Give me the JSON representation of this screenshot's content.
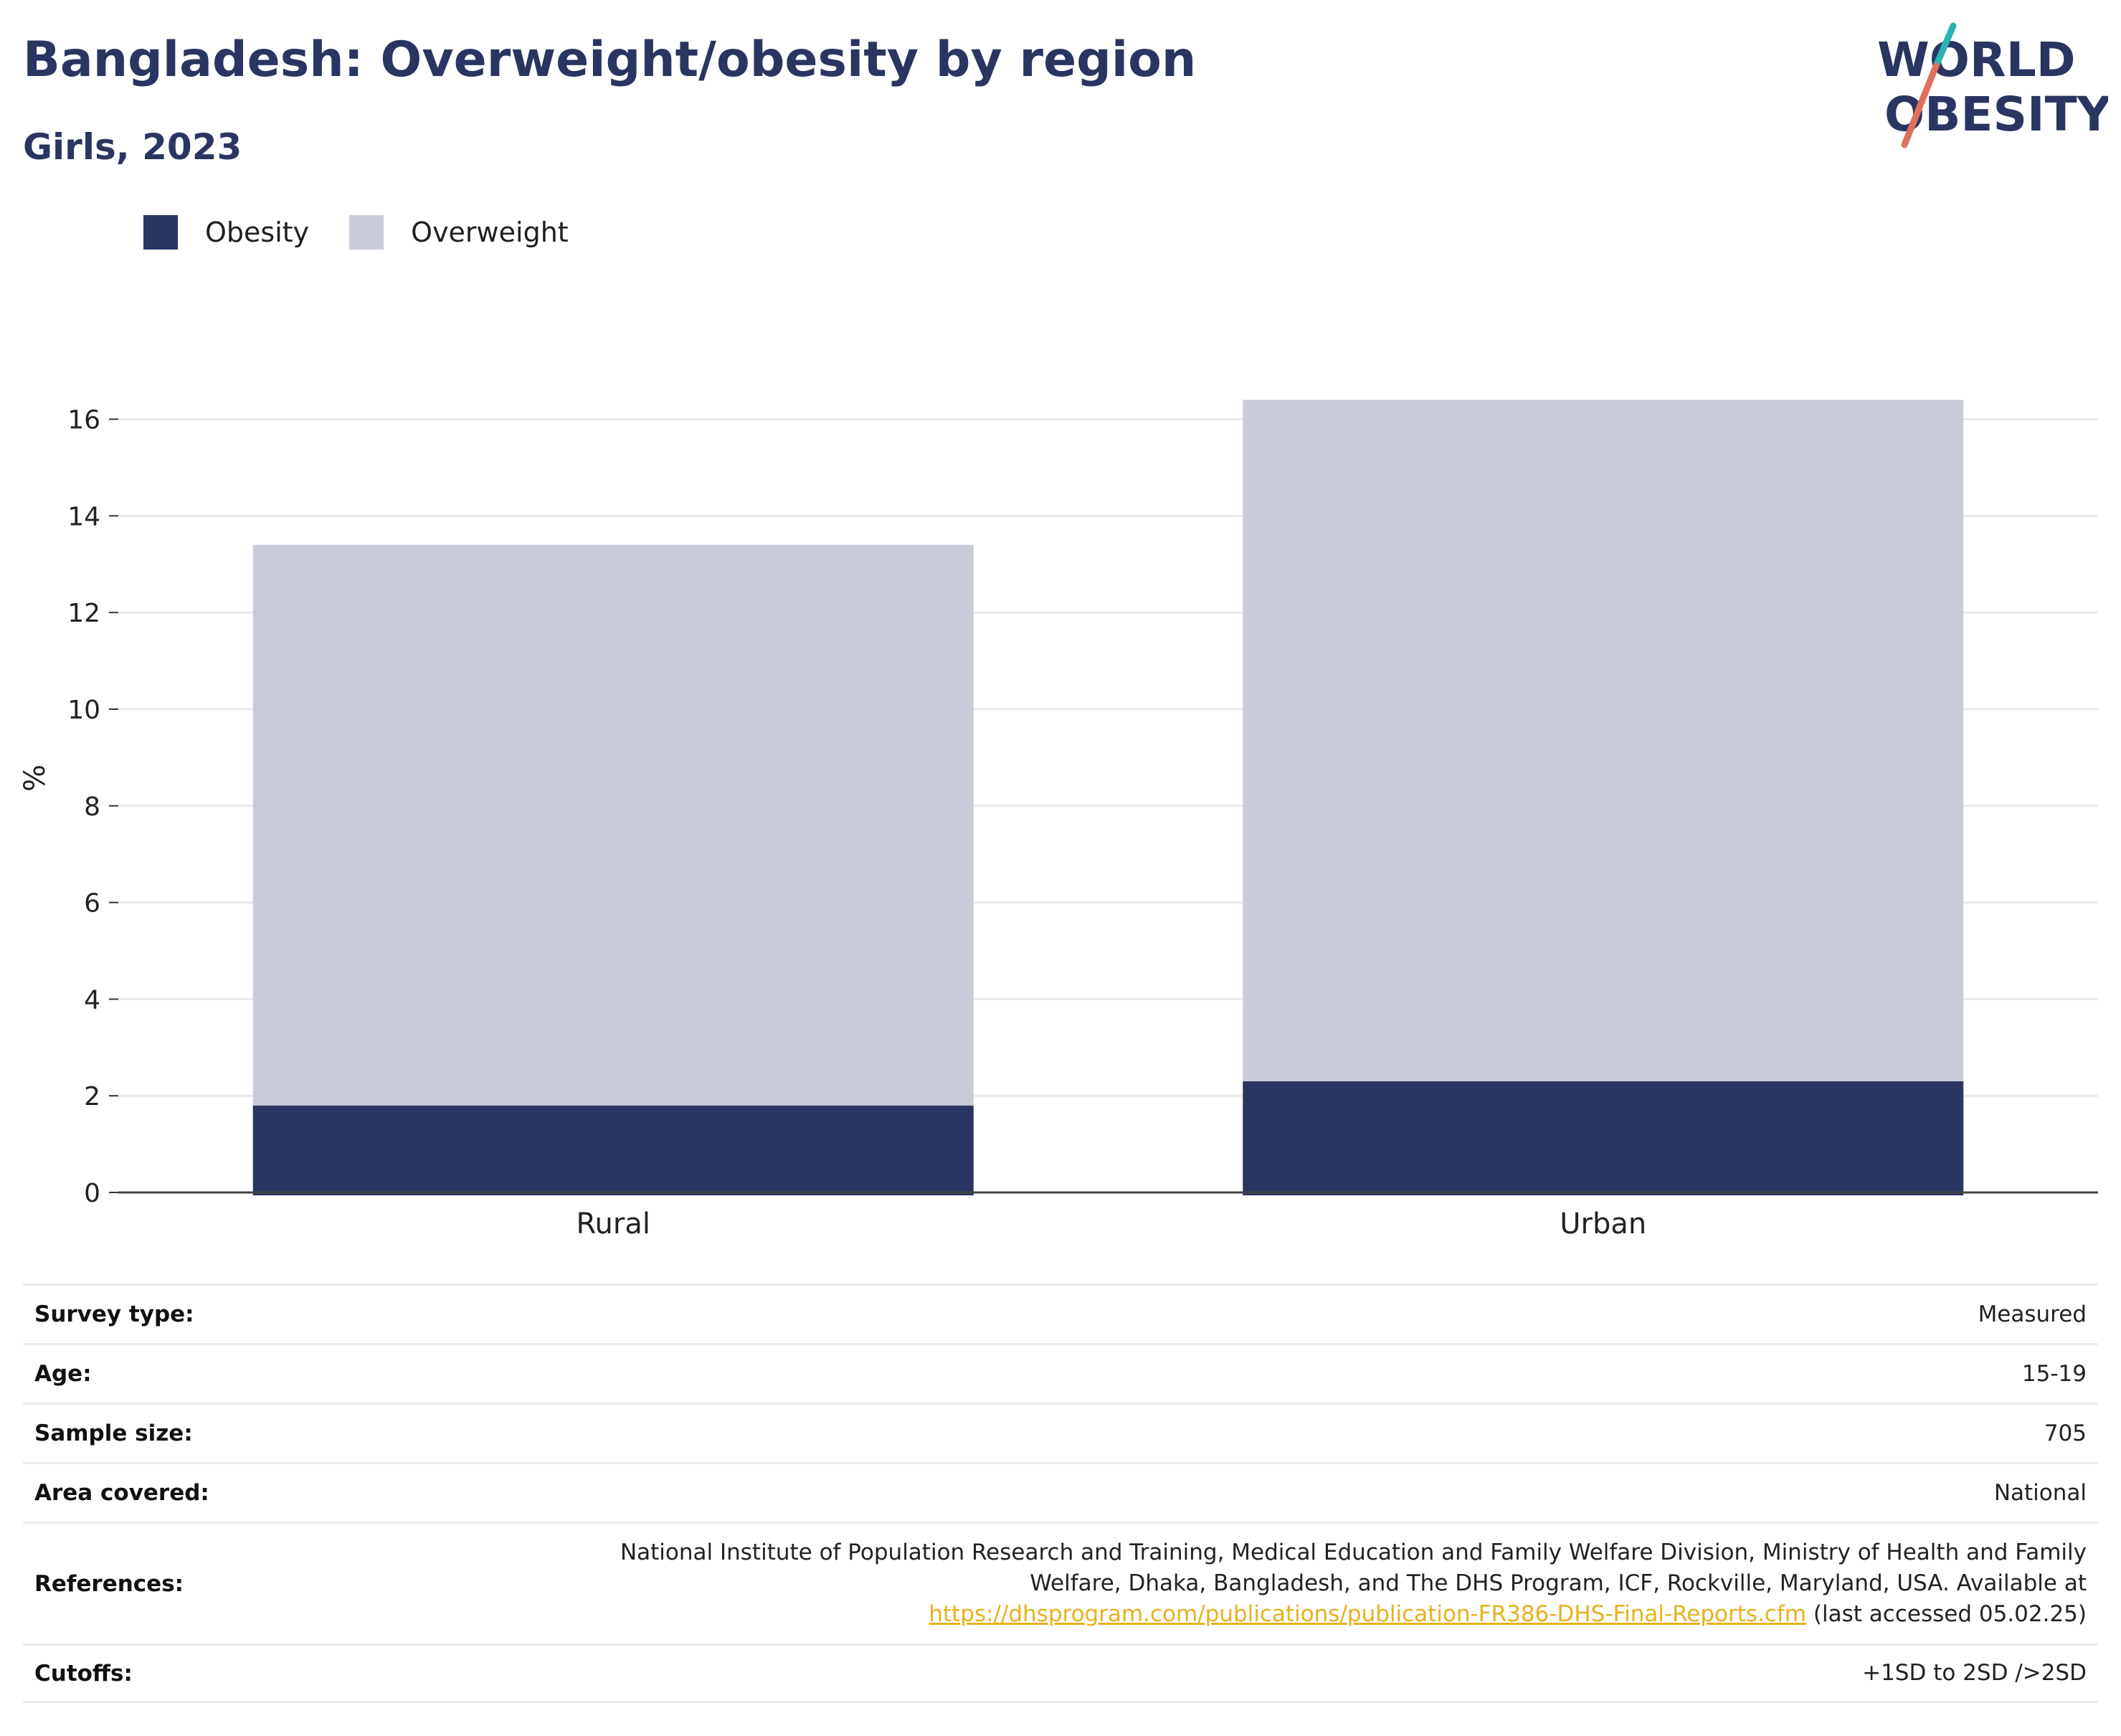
{
  "header": {
    "title": "Bangladesh: Overweight/obesity by region",
    "subtitle": "Girls, 2023"
  },
  "logo": {
    "line1": "WORLD",
    "line2": "OBESITY",
    "color_text": "#2a3562",
    "color_slash_teal": "#2ab3b1",
    "color_slash_coral": "#e0705e"
  },
  "legend": {
    "items": [
      {
        "label": "Obesity",
        "color": "#2a3562"
      },
      {
        "label": "Overweight",
        "color": "#c9ccd8"
      }
    ]
  },
  "chart_data": {
    "type": "bar",
    "stacked": true,
    "categories": [
      "Rural",
      "Urban"
    ],
    "series": [
      {
        "name": "Obesity",
        "color": "#2a3562",
        "values": [
          1.8,
          2.3
        ]
      },
      {
        "name": "Overweight",
        "color": "#c9ccd8",
        "values": [
          11.6,
          14.1
        ]
      }
    ],
    "ylabel": "%",
    "ylim": [
      0,
      17
    ],
    "yticks": [
      0,
      2,
      4,
      6,
      8,
      10,
      12,
      14,
      16
    ],
    "grid": true,
    "legend_position": "top-left"
  },
  "metadata": {
    "survey_type": {
      "label": "Survey type:",
      "value": "Measured"
    },
    "age": {
      "label": "Age:",
      "value": "15-19"
    },
    "sample_size": {
      "label": "Sample size:",
      "value": "705"
    },
    "area_covered": {
      "label": "Area covered:",
      "value": "National"
    },
    "references": {
      "label": "References:",
      "line1": "National Institute of Population Research and Training, Medical Education and Family Welfare Division, Ministry of Health and Family",
      "line2": "Welfare, Dhaka, Bangladesh, and The DHS Program, ICF, Rockville, Maryland, USA. Available at",
      "link": "https://dhsprogram.com/publications/publication-FR386-DHS-Final-Reports.cfm",
      "suffix": " (last accessed 05.02.25)"
    },
    "cutoffs": {
      "label": "Cutoffs:",
      "value": "+1SD to 2SD />2SD"
    }
  }
}
